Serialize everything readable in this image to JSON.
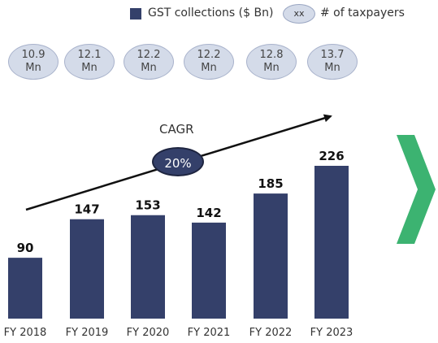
{
  "legend": {
    "bar_label": "GST collections ($ Bn)",
    "oval_sample": "xx",
    "oval_label": "# of taxpayers"
  },
  "taxpayers": [
    {
      "value": "10.9",
      "unit": "Mn"
    },
    {
      "value": "12.1",
      "unit": "Mn"
    },
    {
      "value": "12.2",
      "unit": "Mn"
    },
    {
      "value": "12.2",
      "unit": "Mn"
    },
    {
      "value": "12.8",
      "unit": "Mn"
    },
    {
      "value": "13.7",
      "unit": "Mn"
    }
  ],
  "cagr": {
    "label": "CAGR",
    "value": "20%"
  },
  "colors": {
    "bar": "#34406a",
    "oval_fill": "#d4dbe9",
    "chevron": "#3cb371"
  },
  "chart_data": {
    "type": "bar",
    "categories": [
      "FY 2018",
      "FY 2019",
      "FY 2020",
      "FY 2021",
      "FY 2022",
      "FY 2023"
    ],
    "values": [
      90,
      147,
      153,
      142,
      185,
      226
    ],
    "series": [
      {
        "name": "GST collections ($ Bn)",
        "values": [
          90,
          147,
          153,
          142,
          185,
          226
        ]
      }
    ],
    "ylim": [
      0,
      226
    ],
    "grid": false,
    "legend": "top"
  }
}
